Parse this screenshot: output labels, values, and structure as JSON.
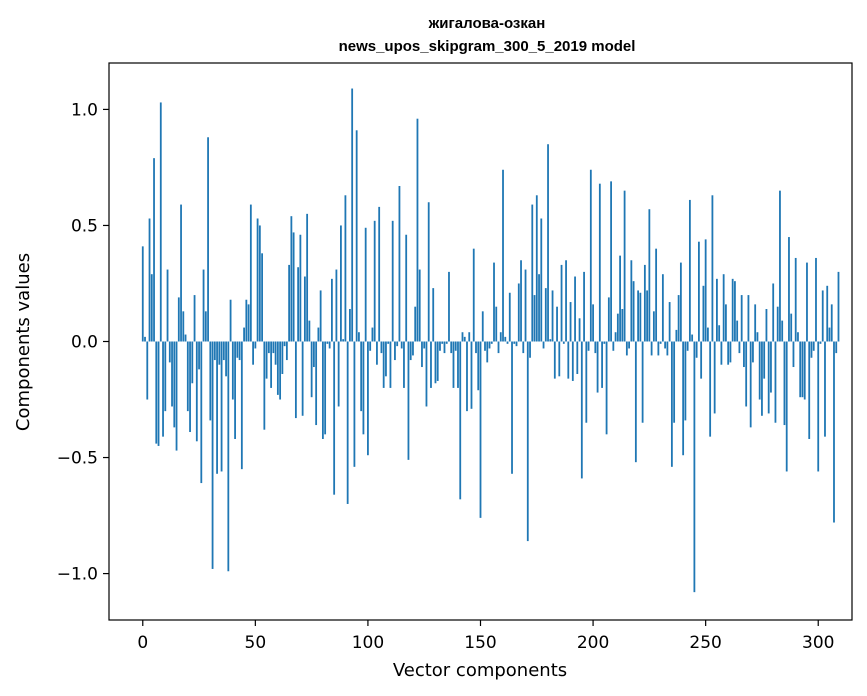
{
  "chart_data": {
    "type": "bar",
    "title": "жигалова-озкан",
    "subtitle": "news_upos_skipgram_300_5_2019 model",
    "xlabel": "Vector components",
    "ylabel": "Components values",
    "xlim": [
      -15,
      315
    ],
    "ylim": [
      -1.2,
      1.2
    ],
    "x_ticks": [
      0,
      50,
      100,
      150,
      200,
      250,
      300
    ],
    "x_tick_labels": [
      "0",
      "50",
      "100",
      "150",
      "200",
      "250",
      "300"
    ],
    "y_ticks": [
      -1.0,
      -0.5,
      0.0,
      0.5,
      1.0
    ],
    "y_tick_labels": [
      "−1.0",
      "−0.5",
      "0.0",
      "0.5",
      "1.0"
    ],
    "color": "#1f77b4",
    "values": [
      0.41,
      0.02,
      -0.25,
      0.53,
      0.29,
      0.79,
      -0.44,
      -0.45,
      1.03,
      -0.41,
      -0.3,
      0.31,
      -0.09,
      -0.28,
      -0.37,
      -0.47,
      0.19,
      0.59,
      0.13,
      0.03,
      -0.3,
      -0.39,
      -0.18,
      0.2,
      -0.43,
      -0.12,
      -0.61,
      0.31,
      0.13,
      0.88,
      -0.34,
      -0.98,
      -0.08,
      -0.57,
      -0.1,
      -0.56,
      -0.08,
      -0.15,
      -0.99,
      0.18,
      -0.25,
      -0.42,
      -0.07,
      -0.08,
      -0.55,
      0.06,
      0.18,
      0.16,
      0.59,
      -0.1,
      -0.03,
      0.53,
      0.5,
      0.38,
      -0.38,
      -0.16,
      -0.05,
      -0.2,
      -0.05,
      -0.1,
      -0.23,
      -0.25,
      -0.14,
      -0.02,
      -0.08,
      0.33,
      0.54,
      0.47,
      -0.33,
      0.32,
      0.46,
      -0.32,
      0.28,
      0.55,
      0.09,
      -0.24,
      -0.11,
      -0.36,
      0.06,
      0.22,
      -0.42,
      -0.4,
      -0.01,
      -0.03,
      0.27,
      -0.66,
      0.31,
      -0.28,
      0.5,
      0.01,
      0.63,
      -0.7,
      0.14,
      1.09,
      -0.54,
      0.91,
      0.04,
      -0.3,
      -0.4,
      0.49,
      -0.49,
      -0.04,
      0.06,
      0.52,
      -0.1,
      0.58,
      -0.05,
      -0.2,
      -0.15,
      -0.01,
      -0.2,
      0.52,
      -0.08,
      -0.02,
      0.67,
      -0.03,
      -0.2,
      0.46,
      -0.51,
      -0.08,
      -0.06,
      0.15,
      0.96,
      0.31,
      -0.11,
      -0.03,
      -0.28,
      0.6,
      -0.2,
      0.23,
      -0.18,
      -0.17,
      -0.04,
      -0.01,
      -0.05,
      -0.01,
      0.3,
      -0.05,
      -0.2,
      -0.04,
      -0.2,
      -0.68,
      0.04,
      0.02,
      -0.3,
      0.04,
      -0.29,
      0.4,
      -0.05,
      -0.21,
      -0.76,
      0.13,
      -0.04,
      -0.09,
      -0.03,
      -0.01,
      0.34,
      0.15,
      -0.05,
      0.04,
      0.74,
      0.02,
      -0.01,
      0.21,
      -0.57,
      -0.01,
      -0.02,
      0.25,
      0.35,
      -0.05,
      0.31,
      -0.86,
      -0.07,
      0.59,
      0.2,
      0.63,
      0.29,
      0.53,
      -0.03,
      0.23,
      0.85,
      0.01,
      0.22,
      -0.16,
      0.15,
      -0.15,
      0.33,
      -0.01,
      0.35,
      -0.16,
      0.17,
      -0.17,
      0.28,
      -0.14,
      0.1,
      -0.59,
      0.3,
      -0.35,
      -0.04,
      0.74,
      0.16,
      -0.05,
      -0.22,
      0.68,
      -0.2,
      -0.01,
      -0.4,
      0.19,
      0.69,
      -0.04,
      0.04,
      0.12,
      0.37,
      0.14,
      0.65,
      -0.06,
      -0.03,
      0.35,
      0.26,
      -0.52,
      0.22,
      0.21,
      -0.35,
      0.33,
      0.22,
      0.57,
      -0.06,
      0.13,
      0.4,
      -0.06,
      -0.01,
      0.29,
      -0.03,
      -0.06,
      0.17,
      -0.54,
      -0.35,
      0.05,
      0.2,
      0.34,
      -0.49,
      -0.34,
      -0.04,
      0.61,
      0.03,
      -1.08,
      -0.07,
      0.43,
      -0.16,
      0.24,
      0.44,
      0.06,
      -0.41,
      0.63,
      -0.31,
      0.27,
      0.07,
      -0.1,
      0.29,
      0.16,
      -0.1,
      -0.09,
      0.27,
      0.26,
      0.09,
      -0.05,
      0.2,
      -0.11,
      -0.28,
      0.2,
      -0.37,
      -0.09,
      0.16,
      0.04,
      -0.25,
      -0.32,
      -0.16,
      0.14,
      -0.31,
      -0.22,
      0.25,
      -0.35,
      0.15,
      0.65,
      0.09,
      -0.36,
      -0.56,
      0.45,
      0.12,
      -0.11,
      0.36,
      0.04,
      -0.24,
      -0.24,
      -0.25,
      0.34,
      -0.42,
      -0.07,
      -0.04,
      0.36,
      -0.56,
      -0.01,
      0.22,
      -0.41,
      0.24,
      0.06,
      0.16,
      -0.78,
      -0.05,
      0.3
    ]
  }
}
